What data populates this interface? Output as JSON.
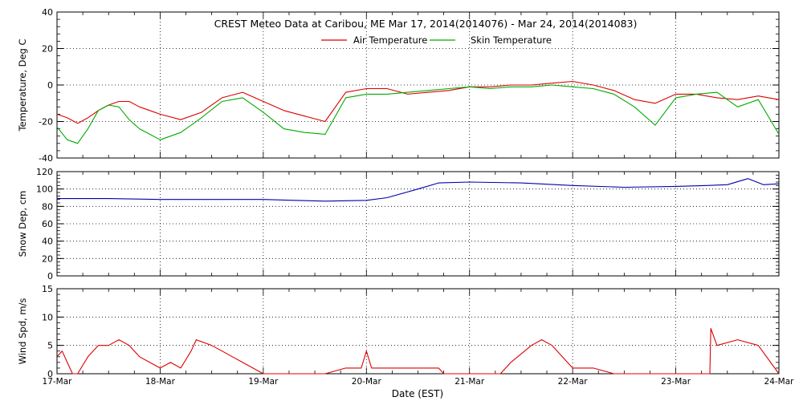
{
  "chart_data": [
    {
      "type": "line",
      "title": "CREST Meteo Data at Caribou, ME   Mar 17, 2014(2014076) - Mar 24, 2014(2014083)",
      "ylabel": "Temperature, Deg C",
      "ylim": [
        -40,
        40
      ],
      "yticks": [
        -40,
        -20,
        0,
        20,
        40
      ],
      "grid": true,
      "legend": "top-center",
      "series": [
        {
          "name": "Air Temperature",
          "color": "#dd0000",
          "x": [
            0,
            0.1,
            0.2,
            0.3,
            0.4,
            0.5,
            0.6,
            0.7,
            0.8,
            0.9,
            1.0,
            1.2,
            1.4,
            1.6,
            1.8,
            2.0,
            2.2,
            2.4,
            2.6,
            2.8,
            3.0,
            3.2,
            3.4,
            3.6,
            3.8,
            4.0,
            4.2,
            4.4,
            4.6,
            4.8,
            5.0,
            5.2,
            5.4,
            5.6,
            5.8,
            6.0,
            6.2,
            6.4,
            6.6,
            6.8,
            7.0
          ],
          "y": [
            -16,
            -18,
            -21,
            -18,
            -14,
            -11,
            -9,
            -9,
            -12,
            -14,
            -16,
            -19,
            -15,
            -7,
            -4,
            -9,
            -14,
            -17,
            -20,
            -4,
            -2,
            -2,
            -5,
            -4,
            -3,
            -1,
            -1,
            0,
            0,
            1,
            2,
            0,
            -3,
            -8,
            -10,
            -5,
            -5,
            -7,
            -8,
            -6,
            -8
          ]
        },
        {
          "name": "Skin Temperature",
          "color": "#00aa00",
          "x": [
            0,
            0.1,
            0.2,
            0.3,
            0.4,
            0.5,
            0.6,
            0.7,
            0.8,
            0.9,
            1.0,
            1.2,
            1.4,
            1.6,
            1.8,
            2.0,
            2.2,
            2.4,
            2.6,
            2.8,
            3.0,
            3.2,
            3.4,
            3.6,
            3.8,
            4.0,
            4.2,
            4.4,
            4.6,
            4.8,
            5.0,
            5.2,
            5.4,
            5.6,
            5.8,
            6.0,
            6.2,
            6.4,
            6.6,
            6.8,
            7.0
          ],
          "y": [
            -23,
            -30,
            -32,
            -24,
            -14,
            -11,
            -12,
            -19,
            -24,
            -27,
            -30,
            -26,
            -18,
            -9,
            -7,
            -15,
            -24,
            -26,
            -27,
            -7,
            -5,
            -5,
            -4,
            -3,
            -2,
            -1,
            -2,
            -1,
            -1,
            0,
            -1,
            -2,
            -5,
            -12,
            -22,
            -7,
            -5,
            -4,
            -12,
            -8,
            -27
          ]
        }
      ]
    },
    {
      "type": "line",
      "ylabel": "Snow Dep, cm",
      "ylim": [
        0,
        120
      ],
      "yticks": [
        0,
        20,
        40,
        60,
        80,
        100,
        120
      ],
      "grid": true,
      "series": [
        {
          "color": "#0000aa",
          "x": [
            0,
            0.5,
            1.0,
            1.5,
            2.0,
            2.3,
            2.6,
            3.0,
            3.2,
            3.5,
            3.7,
            4.0,
            4.5,
            5.0,
            5.5,
            6.0,
            6.3,
            6.5,
            6.7,
            6.85,
            7.0
          ],
          "y": [
            89,
            89,
            88,
            88,
            88,
            87,
            86,
            87,
            90,
            100,
            107,
            108,
            107,
            104,
            102,
            103,
            104,
            105,
            112,
            105,
            106
          ]
        }
      ]
    },
    {
      "type": "line",
      "ylabel": "Wind Spd, m/s",
      "xlabel": "Date (EST)",
      "ylim": [
        0,
        15
      ],
      "yticks": [
        0,
        5,
        10,
        15
      ],
      "grid": true,
      "categories": [
        "17-Mar",
        "18-Mar",
        "19-Mar",
        "20-Mar",
        "21-Mar",
        "22-Mar",
        "23-Mar",
        "24-Mar"
      ],
      "series": [
        {
          "color": "#dd0000",
          "x": [
            0,
            0.05,
            0.1,
            0.15,
            0.2,
            0.3,
            0.4,
            0.5,
            0.6,
            0.7,
            0.8,
            0.9,
            1.0,
            1.1,
            1.2,
            1.3,
            1.35,
            1.5,
            1.6,
            1.7,
            1.8,
            1.9,
            2.0,
            2.2,
            2.4,
            2.6,
            2.8,
            2.95,
            3.0,
            3.05,
            3.2,
            3.4,
            3.6,
            3.7,
            3.75,
            4.0,
            4.2,
            4.3,
            4.4,
            4.6,
            4.7,
            4.8,
            5.0,
            5.2,
            5.4,
            5.6,
            5.7,
            5.8,
            6.0,
            6.2,
            6.33,
            6.34,
            6.4,
            6.6,
            6.8,
            7.0
          ],
          "y": [
            3,
            4,
            2,
            0,
            0,
            3,
            5,
            5,
            6,
            5,
            3,
            2,
            1,
            2,
            1,
            4,
            6,
            5,
            4,
            3,
            2,
            1,
            0,
            0,
            0,
            0,
            1,
            1,
            4,
            1,
            1,
            1,
            1,
            1,
            0,
            0,
            0,
            0,
            2,
            5,
            6,
            5,
            1,
            1,
            0,
            0,
            0,
            0,
            0,
            0,
            0,
            8,
            5,
            6,
            5,
            0
          ]
        }
      ]
    }
  ]
}
